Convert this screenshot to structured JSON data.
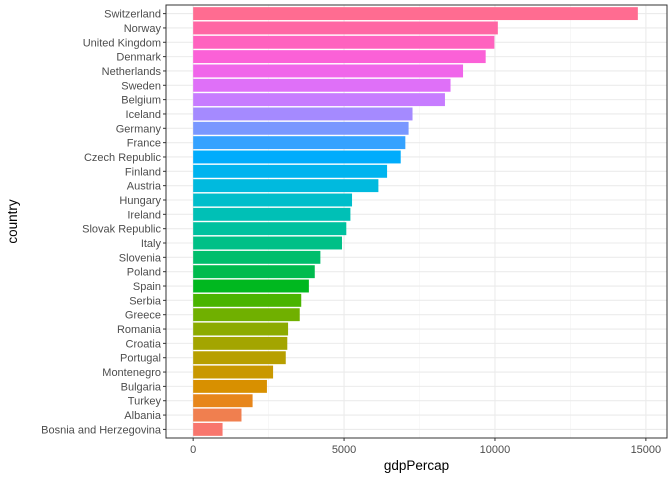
{
  "chart_data": {
    "type": "bar",
    "orientation": "horizontal",
    "xlabel": "gdpPercap",
    "ylabel": "country",
    "xlim": [
      -900,
      15700
    ],
    "x_ticks": [
      0,
      5000,
      10000,
      15000
    ],
    "x_tick_labels": [
      "0",
      "5000",
      "10000",
      "15000"
    ],
    "grid": true,
    "legend": "none",
    "categories": [
      "Bosnia and Herzegovina",
      "Albania",
      "Turkey",
      "Bulgaria",
      "Montenegro",
      "Portugal",
      "Croatia",
      "Romania",
      "Greece",
      "Serbia",
      "Spain",
      "Poland",
      "Slovenia",
      "Italy",
      "Slovak Republic",
      "Ireland",
      "Hungary",
      "Austria",
      "Finland",
      "Czech Republic",
      "France",
      "Germany",
      "Iceland",
      "Belgium",
      "Sweden",
      "Netherlands",
      "Denmark",
      "United Kingdom",
      "Norway",
      "Switzerland"
    ],
    "values": [
      974,
      1601,
      1969,
      2444,
      2648,
      3068,
      3119,
      3145,
      3531,
      3581,
      3834,
      4029,
      4215,
      4931,
      5074,
      5210,
      5264,
      6137,
      6425,
      6877,
      7030,
      7138,
      7268,
      8343,
      8528,
      8942,
      9692,
      9980,
      10095,
      14734
    ],
    "colors": [
      "#F8766D",
      "#F07F4F",
      "#E7861B",
      "#D89000",
      "#C99800",
      "#B79F00",
      "#A3A500",
      "#8CAB00",
      "#70B000",
      "#4AB400",
      "#00B81F",
      "#00BB4E",
      "#00BE6C",
      "#00C087",
      "#00C19F",
      "#00C0B6",
      "#00BECB",
      "#00BADE",
      "#00B4EF",
      "#00ACFC",
      "#35A2FF",
      "#7997FF",
      "#A58AFF",
      "#C77CFF",
      "#DF70F8",
      "#F066EA",
      "#FB61D7",
      "#FF62BF",
      "#FF67A4",
      "#FF6C91"
    ]
  }
}
